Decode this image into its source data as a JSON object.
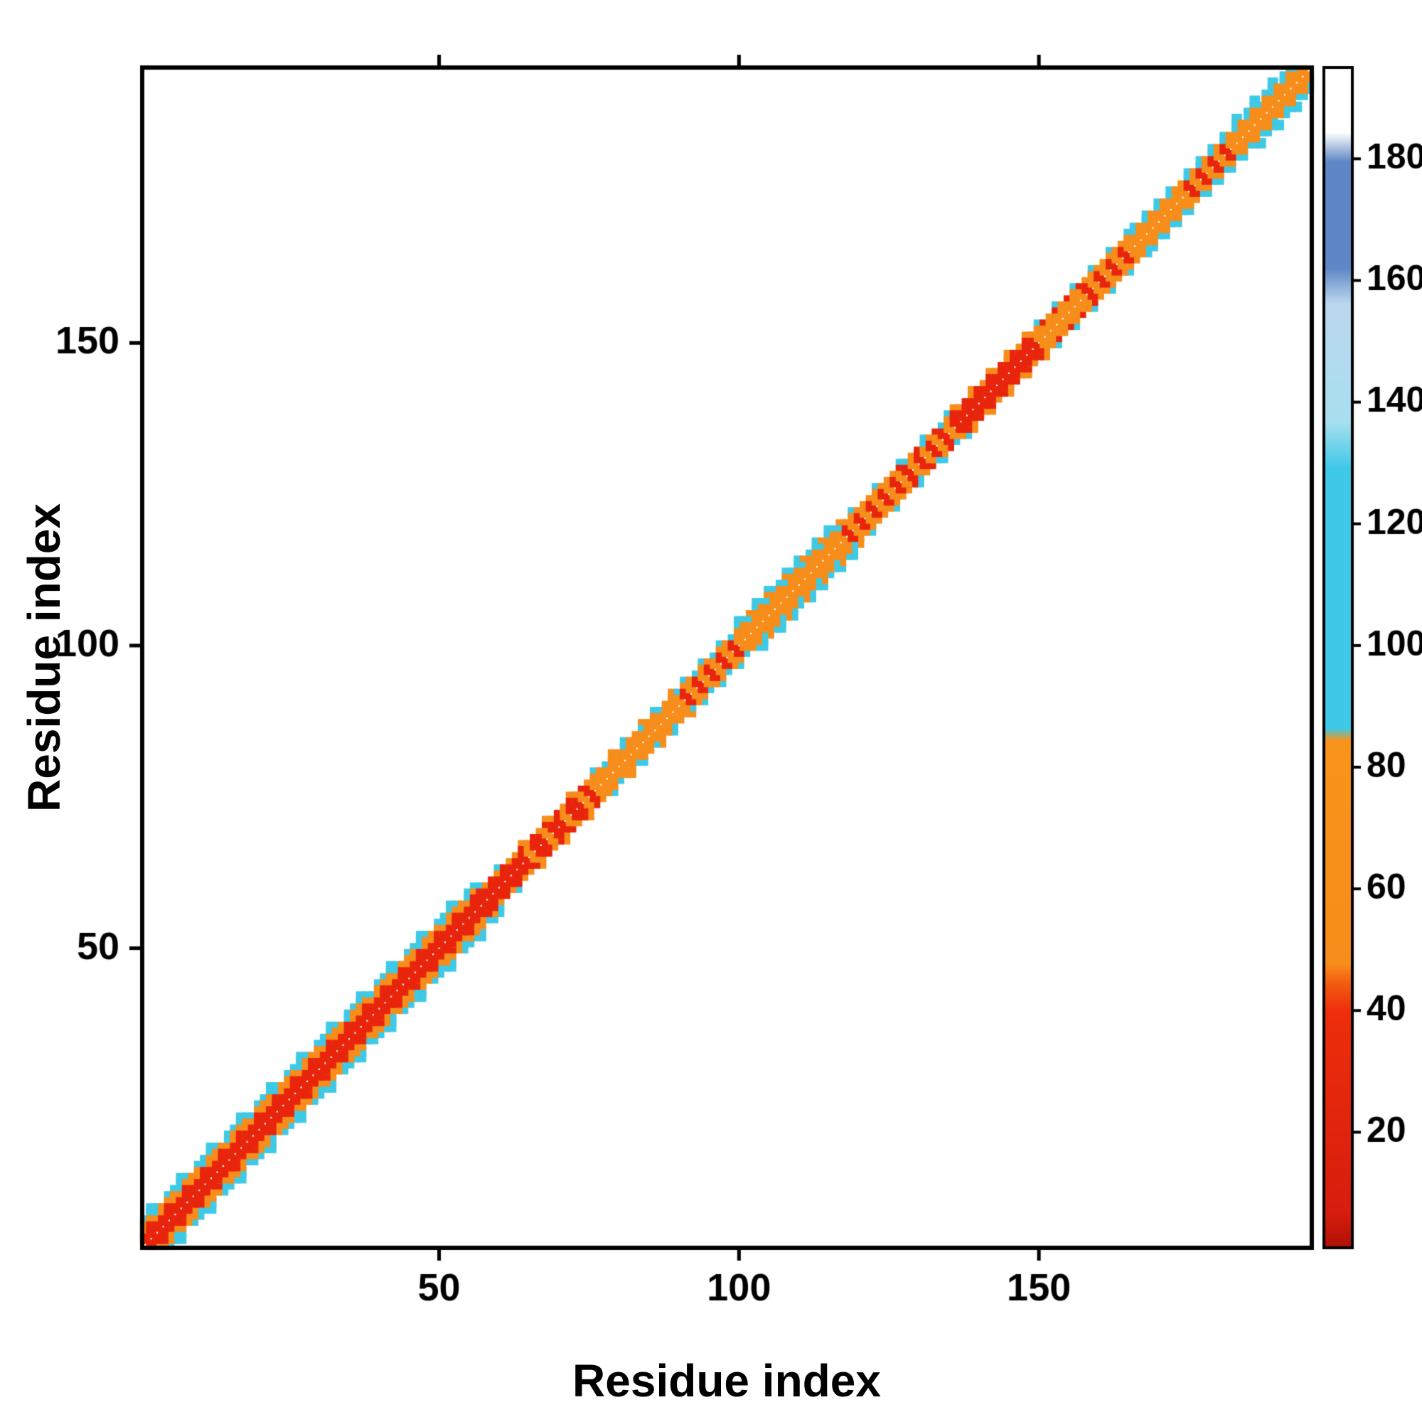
{
  "figure": {
    "title": ""
  },
  "chart_data": {
    "type": "heatmap",
    "title": "",
    "xlabel": "Residue index",
    "ylabel": "Residue index",
    "x_range": [
      1,
      195
    ],
    "y_range": [
      1,
      195
    ],
    "x_ticks": [
      50,
      100,
      150
    ],
    "y_ticks": [
      50,
      100,
      150
    ],
    "grid": false,
    "background": "#ffffff",
    "frame_color": "#000000",
    "palette": {
      "red": "#e8250c",
      "orange": "#f78d1a",
      "cyan": "#3ec9e6",
      "white": "#ffffff"
    },
    "colorbar": {
      "ticks": [
        20,
        40,
        60,
        80,
        100,
        120,
        140,
        160,
        180
      ],
      "range": [
        1,
        195
      ],
      "stops": [
        [
          0.0,
          "#b01005"
        ],
        [
          0.03,
          "#d71d0e"
        ],
        [
          0.2,
          "#ee2e0c"
        ],
        [
          0.225,
          "#f35e12"
        ],
        [
          0.24,
          "#f78d1a"
        ],
        [
          0.43,
          "#f8941c"
        ],
        [
          0.44,
          "#3ec9e6"
        ],
        [
          0.66,
          "#3ec9e6"
        ],
        [
          0.7,
          "#a8dff0"
        ],
        [
          0.8,
          "#bcd7ee"
        ],
        [
          0.83,
          "#5f87c6"
        ],
        [
          0.92,
          "#5f87c6"
        ],
        [
          0.945,
          "#ffffff"
        ],
        [
          1.0,
          "#ffffff"
        ]
      ]
    },
    "contact_segments": [
      {
        "range": [
          1,
          57
        ],
        "offsets": [
          {
            "d": 5,
            "colors": [
              "none",
              "cyan",
              "none",
              "none",
              "none"
            ]
          },
          {
            "d": 4,
            "colors": [
              "cyan",
              "cyan",
              "cyan",
              "none",
              "cyan"
            ]
          },
          {
            "d": 3,
            "colors": [
              "orange",
              "orange",
              "cyan",
              "orange"
            ]
          },
          {
            "d": 2,
            "colors": [
              "orange",
              "red",
              "orange"
            ]
          },
          {
            "d": 1,
            "colors": [
              "red"
            ]
          }
        ]
      },
      {
        "range": [
          57,
          63
        ],
        "offsets": [
          {
            "d": 3,
            "colors": [
              "cyan",
              "none",
              "none"
            ]
          },
          {
            "d": 2,
            "colors": [
              "red",
              "orange"
            ]
          },
          {
            "d": 1,
            "colors": [
              "red"
            ]
          }
        ]
      },
      {
        "range": [
          63,
          76
        ],
        "offsets": [
          {
            "d": 3,
            "colors": [
              "none",
              "orange",
              "none",
              "none"
            ]
          },
          {
            "d": 2,
            "colors": [
              "orange",
              "red"
            ]
          },
          {
            "d": 1,
            "colors": [
              "red",
              "red",
              "orange"
            ]
          }
        ]
      },
      {
        "range": [
          76,
          90
        ],
        "offsets": [
          {
            "d": 3,
            "colors": [
              "cyan",
              "none",
              "none",
              "orange",
              "none"
            ]
          },
          {
            "d": 2,
            "colors": [
              "orange",
              "orange",
              "cyan"
            ]
          },
          {
            "d": 1,
            "colors": [
              "orange"
            ]
          }
        ]
      },
      {
        "range": [
          90,
          100
        ],
        "offsets": [
          {
            "d": 3,
            "colors": [
              "none",
              "cyan",
              "none"
            ]
          },
          {
            "d": 2,
            "colors": [
              "cyan",
              "orange",
              "orange"
            ]
          },
          {
            "d": 1,
            "colors": [
              "orange",
              "red"
            ]
          }
        ]
      },
      {
        "range": [
          100,
          118
        ],
        "offsets": [
          {
            "d": 4,
            "colors": [
              "cyan",
              "none",
              "none",
              "cyan",
              "none"
            ]
          },
          {
            "d": 3,
            "colors": [
              "cyan",
              "cyan",
              "orange"
            ]
          },
          {
            "d": 2,
            "colors": [
              "orange",
              "orange",
              "cyan"
            ]
          },
          {
            "d": 1,
            "colors": [
              "orange"
            ]
          }
        ]
      },
      {
        "range": [
          118,
          127
        ],
        "offsets": [
          {
            "d": 3,
            "colors": [
              "none",
              "cyan",
              "none",
              "none"
            ]
          },
          {
            "d": 2,
            "colors": [
              "orange"
            ]
          },
          {
            "d": 1,
            "colors": [
              "red",
              "orange"
            ]
          }
        ]
      },
      {
        "range": [
          127,
          136
        ],
        "offsets": [
          {
            "d": 3,
            "colors": [
              "cyan",
              "none",
              "none",
              "none"
            ]
          },
          {
            "d": 2,
            "colors": [
              "red",
              "cyan",
              "orange"
            ]
          },
          {
            "d": 1,
            "colors": [
              "orange",
              "red"
            ]
          }
        ]
      },
      {
        "range": [
          136,
          150
        ],
        "offsets": [
          {
            "d": 3,
            "colors": [
              "orange",
              "none",
              "none"
            ]
          },
          {
            "d": 2,
            "colors": [
              "red",
              "orange"
            ]
          },
          {
            "d": 1,
            "colors": [
              "red"
            ]
          }
        ]
      },
      {
        "range": [
          150,
          158
        ],
        "offsets": [
          {
            "d": 3,
            "colors": [
              "cyan",
              "none",
              "none"
            ]
          },
          {
            "d": 2,
            "colors": [
              "orange",
              "red"
            ]
          },
          {
            "d": 1,
            "colors": [
              "orange"
            ]
          }
        ]
      },
      {
        "range": [
          158,
          166
        ],
        "offsets": [
          {
            "d": 3,
            "colors": [
              "none",
              "cyan",
              "none"
            ]
          },
          {
            "d": 2,
            "colors": [
              "orange"
            ]
          },
          {
            "d": 1,
            "colors": [
              "red",
              "orange"
            ]
          }
        ]
      },
      {
        "range": [
          166,
          174
        ],
        "offsets": [
          {
            "d": 3,
            "colors": [
              "cyan",
              "none"
            ]
          },
          {
            "d": 2,
            "colors": [
              "cyan",
              "orange"
            ]
          },
          {
            "d": 1,
            "colors": [
              "orange"
            ]
          }
        ]
      },
      {
        "range": [
          174,
          183
        ],
        "offsets": [
          {
            "d": 3,
            "colors": [
              "none",
              "cyan"
            ]
          },
          {
            "d": 2,
            "colors": [
              "orange",
              "cyan"
            ]
          },
          {
            "d": 1,
            "colors": [
              "orange",
              "red"
            ]
          }
        ]
      },
      {
        "range": [
          183,
          195
        ],
        "offsets": [
          {
            "d": 4,
            "colors": [
              "cyan",
              "none",
              "none"
            ]
          },
          {
            "d": 3,
            "colors": [
              "cyan",
              "none",
              "cyan"
            ]
          },
          {
            "d": 2,
            "colors": [
              "cyan",
              "orange"
            ]
          },
          {
            "d": 1,
            "colors": [
              "orange"
            ]
          }
        ]
      }
    ]
  }
}
